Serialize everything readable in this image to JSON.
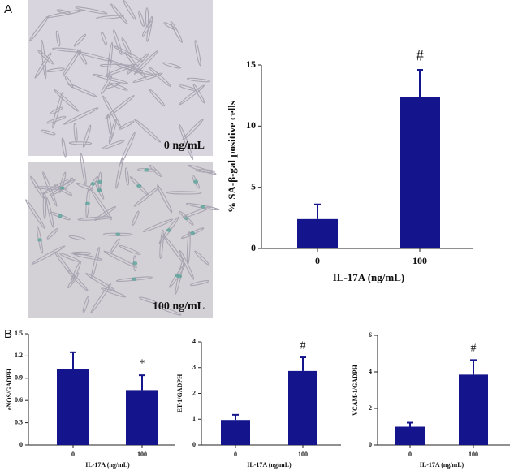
{
  "panel_labels": [
    "A",
    "B"
  ],
  "images": [
    {
      "caption": "0 ng/mL"
    },
    {
      "caption": "100 ng/mL"
    }
  ],
  "chart_data": [
    {
      "type": "bar",
      "ylabel": "% SA-β-gal positive cells",
      "xlabel": "IL-17A (ng/mL)",
      "categories": [
        "0",
        "100"
      ],
      "values": [
        2.4,
        12.4
      ],
      "errors": [
        1.2,
        2.2
      ],
      "color": "#14148c",
      "ylim": [
        0,
        15
      ],
      "yticks": [
        0,
        5,
        10,
        15
      ],
      "annotations": [
        {
          "text": "#",
          "category": "100"
        }
      ]
    },
    {
      "type": "bar",
      "ylabel": "eNOS/GADPH",
      "xlabel": "IL-17A (ng/mL)",
      "categories": [
        "0",
        "100"
      ],
      "values": [
        1.02,
        0.74
      ],
      "errors": [
        0.23,
        0.2
      ],
      "color": "#14148c",
      "ylim": [
        0,
        1.5
      ],
      "yticks": [
        0,
        0.3,
        0.6,
        0.9,
        1.2,
        1.5
      ],
      "annotations": [
        {
          "text": "*",
          "category": "100"
        }
      ]
    },
    {
      "type": "bar",
      "ylabel": "ET-1/GADPH",
      "xlabel": "IL-17A (ng/mL)",
      "categories": [
        "0",
        "100"
      ],
      "values": [
        0.97,
        2.87
      ],
      "errors": [
        0.2,
        0.53
      ],
      "color": "#14148c",
      "ylim": [
        0,
        4
      ],
      "yticks": [
        0,
        1,
        2,
        3,
        4
      ],
      "annotations": [
        {
          "text": "#",
          "category": "100"
        }
      ]
    },
    {
      "type": "bar",
      "ylabel": "VCAM-1/GADPH",
      "xlabel": "IL-17A (ng/mL)",
      "categories": [
        "0",
        "100"
      ],
      "values": [
        1.0,
        3.85
      ],
      "errors": [
        0.22,
        0.8
      ],
      "color": "#14148c",
      "ylim": [
        0,
        6
      ],
      "yticks": [
        0,
        2,
        4,
        6
      ],
      "annotations": [
        {
          "text": "#",
          "category": "100"
        }
      ]
    }
  ]
}
